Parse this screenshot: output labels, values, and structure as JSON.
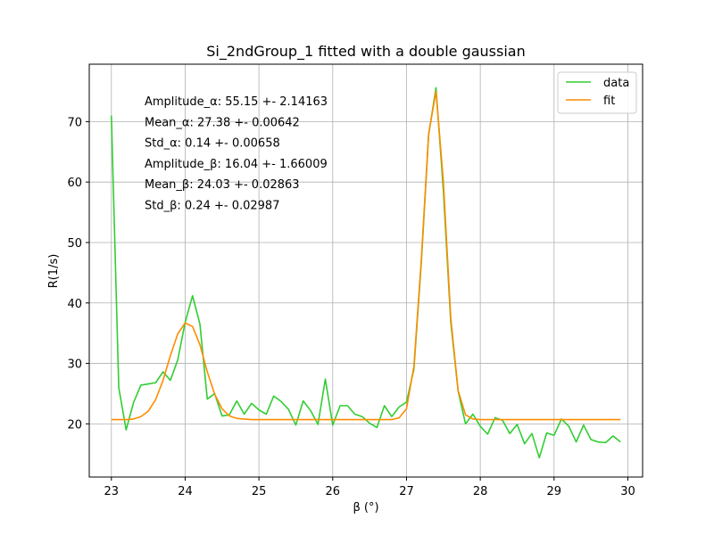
{
  "chart_data": {
    "type": "line",
    "title": "Si_2ndGroup_1 fitted with a double gaussian",
    "xlabel": "β (°)",
    "ylabel": "R(1/s)",
    "xlim": [
      22.7,
      30.2
    ],
    "ylim": [
      11.2,
      79.5
    ],
    "xticks": [
      23,
      24,
      25,
      26,
      27,
      28,
      29,
      30
    ],
    "yticks": [
      20,
      30,
      40,
      50,
      60,
      70
    ],
    "grid": true,
    "legend_position": "top-right",
    "annotations": [
      "Amplitude_α: 55.15 +- 2.14163",
      "Mean_α: 27.38 +- 0.00642",
      "Std_α: 0.14 +- 0.00658",
      "Amplitude_β: 16.04 +- 1.66009",
      "Mean_β: 24.03 +- 0.02863",
      "Std_β: 0.24 +- 0.02987"
    ],
    "x": [
      23.0,
      23.1,
      23.2,
      23.3,
      23.4,
      23.5,
      23.6,
      23.7,
      23.8,
      23.9,
      24.0,
      24.1,
      24.2,
      24.3,
      24.4,
      24.5,
      24.6,
      24.7,
      24.8,
      24.9,
      25.0,
      25.1,
      25.2,
      25.3,
      25.4,
      25.5,
      25.6,
      25.7,
      25.8,
      25.9,
      26.0,
      26.1,
      26.2,
      26.3,
      26.4,
      26.5,
      26.6,
      26.7,
      26.8,
      26.9,
      27.0,
      27.1,
      27.2,
      27.3,
      27.4,
      27.5,
      27.6,
      27.7,
      27.8,
      27.9,
      28.0,
      28.1,
      28.2,
      28.3,
      28.4,
      28.5,
      28.6,
      28.7,
      28.8,
      28.9,
      29.0,
      29.1,
      29.2,
      29.3,
      29.4,
      29.5,
      29.6,
      29.7,
      29.8,
      29.9
    ],
    "series": [
      {
        "name": "data",
        "color": "#32cd32",
        "values": [
          71.0,
          26.0,
          19.0,
          23.5,
          26.4,
          26.6,
          26.8,
          28.6,
          27.2,
          30.6,
          36.8,
          41.2,
          36.5,
          24.1,
          25.0,
          21.3,
          21.5,
          23.8,
          21.6,
          23.4,
          22.3,
          21.6,
          24.6,
          23.7,
          22.4,
          19.8,
          23.8,
          22.2,
          19.9,
          27.4,
          19.8,
          23.0,
          23.0,
          21.6,
          21.2,
          20.1,
          19.4,
          23.0,
          21.2,
          22.8,
          23.6,
          29.0,
          46.5,
          67.8,
          75.6,
          58.5,
          36.8,
          25.4,
          20.0,
          21.6,
          19.6,
          18.3,
          21.0,
          20.6,
          18.4,
          19.9,
          16.7,
          18.4,
          14.4,
          18.5,
          18.1,
          20.8,
          19.6,
          17.0,
          19.8,
          17.4,
          17.0,
          16.9,
          18.0,
          17.0
        ]
      },
      {
        "name": "fit",
        "color": "#ff8c00",
        "values": [
          20.7,
          20.7,
          20.7,
          20.8,
          21.2,
          22.1,
          24.0,
          27.2,
          31.3,
          34.9,
          36.7,
          36.1,
          33.1,
          28.6,
          24.9,
          22.5,
          21.3,
          20.9,
          20.8,
          20.7,
          20.7,
          20.7,
          20.7,
          20.7,
          20.7,
          20.7,
          20.7,
          20.7,
          20.7,
          20.7,
          20.7,
          20.7,
          20.7,
          20.7,
          20.7,
          20.7,
          20.7,
          20.7,
          20.7,
          21.0,
          22.5,
          29.5,
          47.0,
          68.0,
          75.0,
          60.0,
          37.5,
          25.5,
          21.5,
          20.8,
          20.7,
          20.7,
          20.7,
          20.7,
          20.7,
          20.7,
          20.7,
          20.7,
          20.7,
          20.7,
          20.7,
          20.7,
          20.7,
          20.7,
          20.7,
          20.7,
          20.7,
          20.7,
          20.7,
          20.7
        ]
      }
    ]
  }
}
